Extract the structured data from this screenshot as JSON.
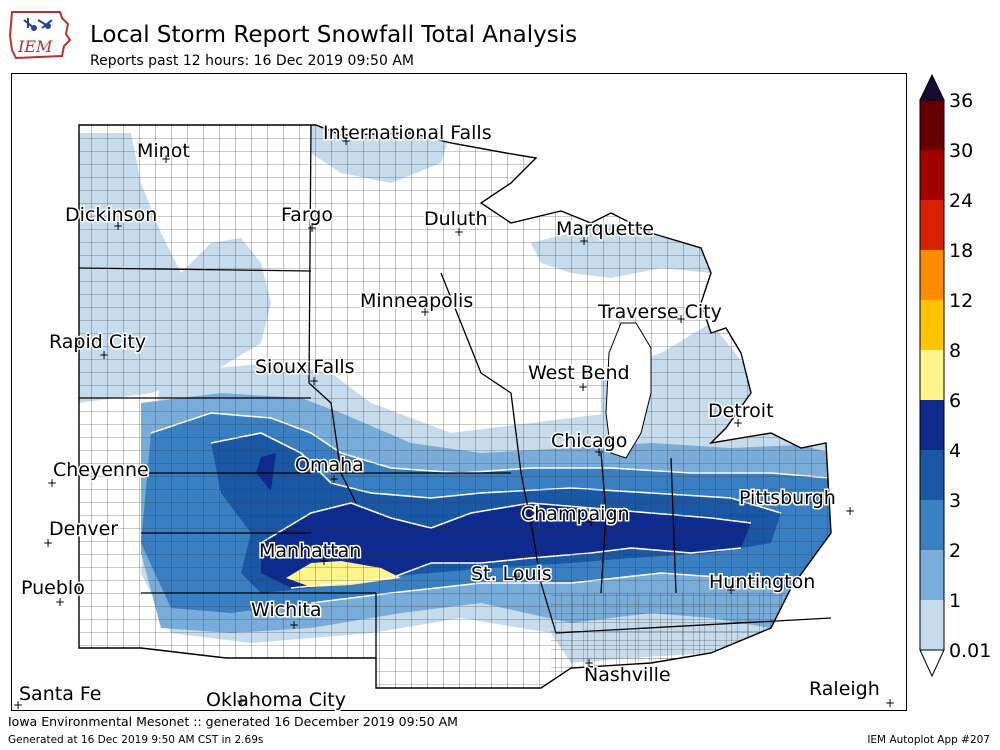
{
  "header": {
    "logo_text": "IEM",
    "title": "Local Storm Report Snowfall Total Analysis",
    "subtitle": "Reports past 12 hours: 16 Dec 2019 09:50 AM"
  },
  "legend": {
    "levels": [
      "36",
      "30",
      "24",
      "18",
      "12",
      "8",
      "6",
      "4",
      "3",
      "2",
      "1",
      "0.01"
    ],
    "colors": [
      "#1a0a33",
      "#660000",
      "#a50000",
      "#d92000",
      "#ff8c00",
      "#ffc400",
      "#fff58a",
      "#0e2a8c",
      "#1a58a6",
      "#3a7fc1",
      "#79acd8",
      "#c6dbec"
    ]
  },
  "map": {
    "cities": [
      "International Falls",
      "Minot",
      "Dickinson",
      "Fargo",
      "Duluth",
      "Marquette",
      "Minneapolis",
      "Traverse City",
      "Rapid City",
      "Sioux Falls",
      "West Bend",
      "Detroit",
      "Chicago",
      "Cheyenne",
      "Omaha",
      "Pittsburgh",
      "Champaign",
      "Denver",
      "Manhattan",
      "St. Louis",
      "Huntington",
      "Pueblo",
      "Wichita",
      "Nashville",
      "Santa Fe",
      "Oklahoma City",
      "Raleigh"
    ]
  },
  "footer": {
    "left": "Iowa Environmental Mesonet :: generated 16 December 2019 09:50 AM",
    "left2": "Generated at 16 Dec 2019 9:50 AM CST in 2.69s",
    "right": "IEM Autoplot App #207"
  }
}
